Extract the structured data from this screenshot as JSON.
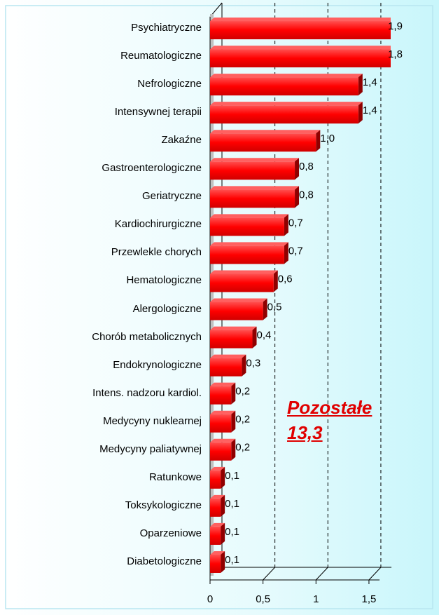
{
  "chart_data": {
    "type": "bar",
    "orientation": "horizontal",
    "categories": [
      "Psychiatryczne",
      "Reumatologiczne",
      "Nefrologiczne",
      "Intensywnej terapii",
      "Zakaźne",
      "Gastroenterologiczne",
      "Geriatryczne",
      "Kardiochirurgiczne",
      "Przewlekle chorych",
      "Hematologiczne",
      "Alergologiczne",
      "Chorób metabolicznych",
      "Endokrynologiczne",
      "Intens. nadzoru kardiol.",
      "Medycyny nuklearnej",
      "Medycyny paliatywnej",
      "Ratunkowe",
      "Toksykologiczne",
      "Oparzeniowe",
      "Diabetologiczne"
    ],
    "values": [
      1.9,
      1.8,
      1.4,
      1.4,
      1.0,
      0.8,
      0.8,
      0.7,
      0.7,
      0.6,
      0.5,
      0.4,
      0.3,
      0.2,
      0.2,
      0.2,
      0.1,
      0.1,
      0.1,
      0.1
    ],
    "value_labels": [
      "1,9",
      "1,8",
      "1,4",
      "1,4",
      "1,0",
      "0,8",
      "0,8",
      "0,7",
      "0,7",
      "0,6",
      "0,5",
      "0,4",
      "0,3",
      "0,2",
      "0,2",
      "0,2",
      "0,1",
      "0,1",
      "0,1",
      "0,1"
    ],
    "color": "#ff0000",
    "xlim": [
      0,
      1.6
    ],
    "xticks": [
      0,
      {
        "value": 0.5,
        "label": "0,5"
      },
      1,
      {
        "value": 1.5,
        "label": "1,5"
      }
    ],
    "grid": true,
    "annotation": [
      "Pozostałe",
      "13,3"
    ]
  }
}
